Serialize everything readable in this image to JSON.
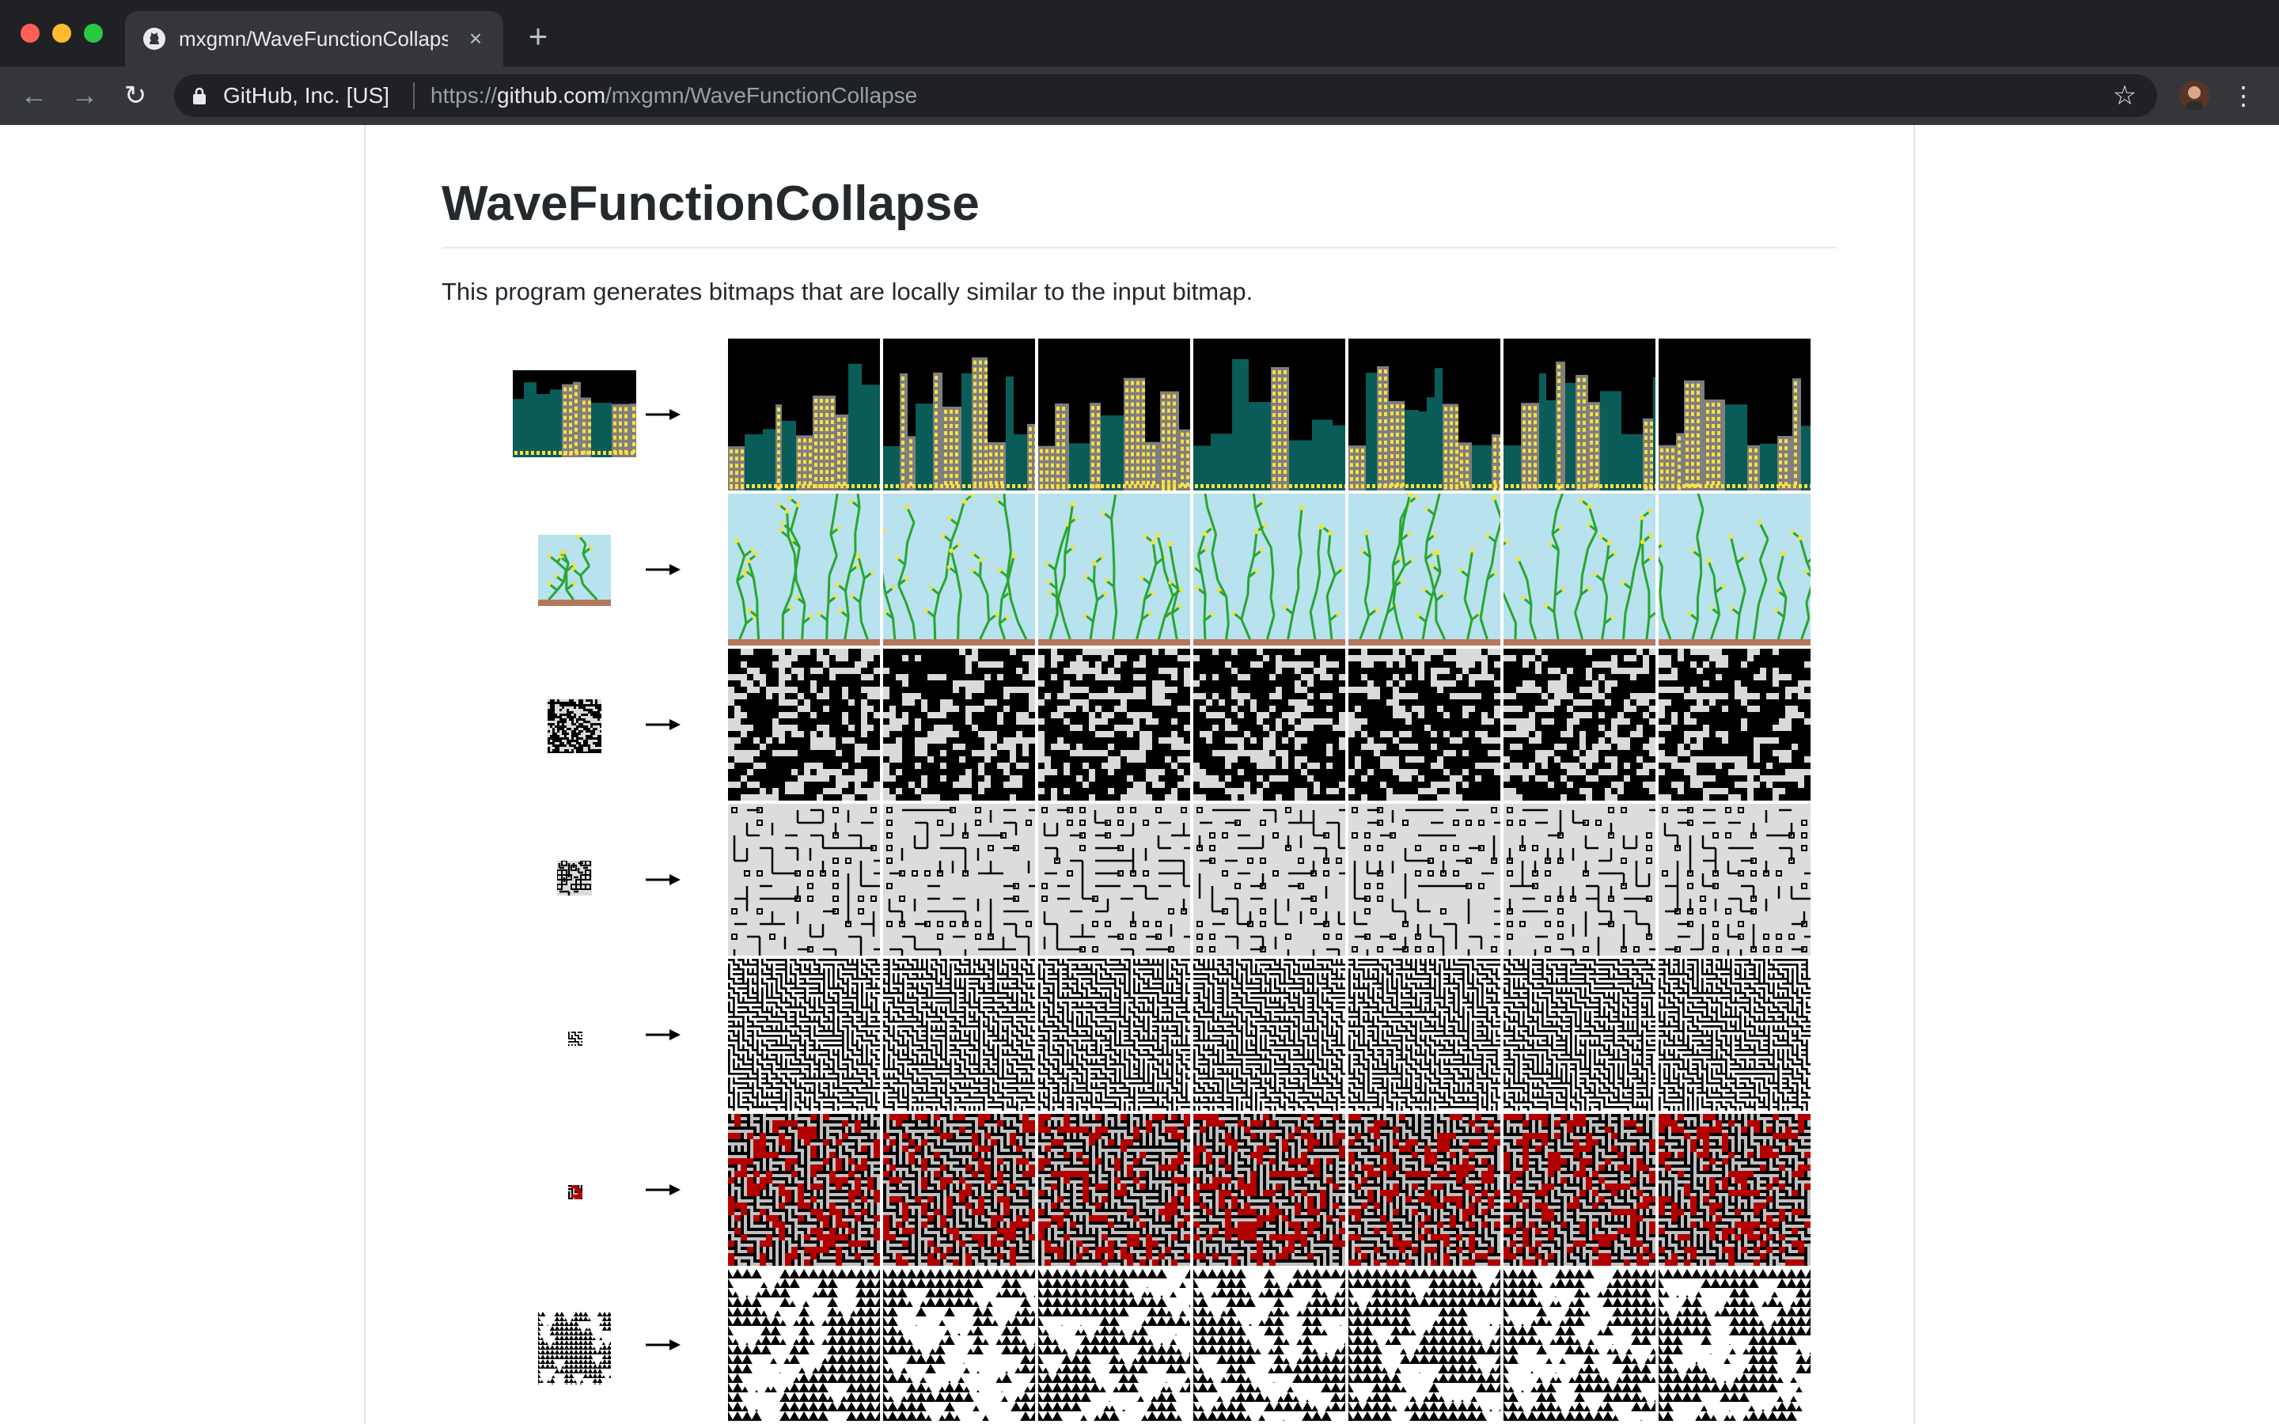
{
  "browser": {
    "tab": {
      "title": "mxgmn/WaveFunctionCollapse",
      "favicon": "github-icon",
      "close": "×"
    },
    "new_tab": "+",
    "toolbar": {
      "back": "←",
      "forward": "→",
      "reload": "↻"
    },
    "address": {
      "site_identity": "GitHub, Inc. [US]",
      "url_prefix": "https://",
      "url_host": "github.com",
      "url_path": "/mxgmn/WaveFunctionCollapse"
    },
    "star": "☆",
    "menu": "⋮"
  },
  "readme": {
    "title": "WaveFunctionCollapse",
    "intro": "This program generates bitmaps that are locally similar to the input bitmap."
  },
  "examples": [
    {
      "name": "skyline",
      "palette": [
        "#000000",
        "#0a5c58",
        "#7f7f7f",
        "#ffe040"
      ]
    },
    {
      "name": "flowers",
      "palette": [
        "#b7e2ee",
        "#2aa52f",
        "#f0e430",
        "#b5785a"
      ]
    },
    {
      "name": "blocks",
      "palette": [
        "#dadada",
        "#000000"
      ]
    },
    {
      "name": "pipes",
      "palette": [
        "#dcdcdc",
        "#000000"
      ]
    },
    {
      "name": "maze",
      "palette": [
        "#ffffff",
        "#000000"
      ]
    },
    {
      "name": "red-dots",
      "palette": [
        "#c0c0c0",
        "#000000",
        "#b30000"
      ]
    },
    {
      "name": "triangles",
      "palette": [
        "#ffffff",
        "#000000"
      ]
    }
  ]
}
